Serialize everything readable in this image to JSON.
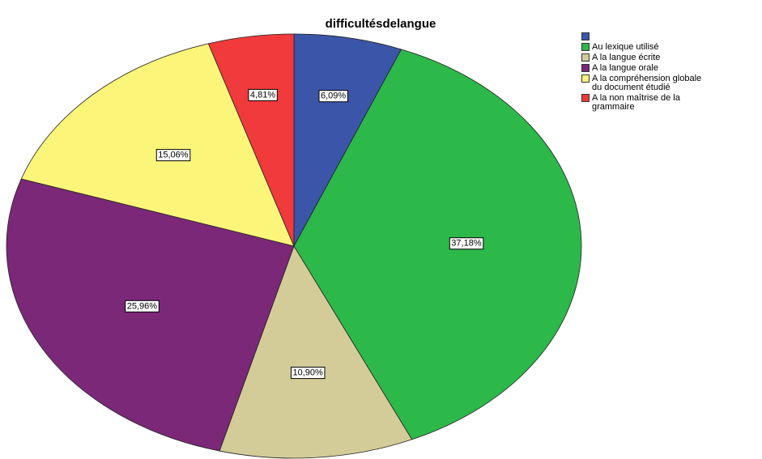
{
  "chart_data": {
    "type": "pie",
    "title": "difficultésdelangue",
    "categories": [
      null,
      "Au lexique utilisé",
      "A la langue écrite",
      "A la langue orale",
      "A la compréhension globale\ndu document étudié",
      "A la non maîtrise de la\ngrammaire"
    ],
    "values": [
      6.09,
      37.18,
      10.9,
      25.96,
      15.06,
      4.81
    ],
    "value_labels": [
      "6,09%",
      "37,18%",
      "10,90%",
      "25,96%",
      "15,06%",
      "4,81%"
    ],
    "colors": [
      "#3b55a8",
      "#2db84a",
      "#d4cc98",
      "#7b2878",
      "#fbf57a",
      "#f03a3c"
    ],
    "legend": "upper right"
  }
}
